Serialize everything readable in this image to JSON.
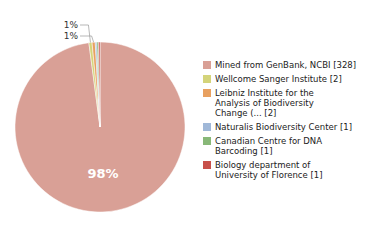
{
  "chart_data": {
    "type": "pie",
    "labels": [
      "Mined from GenBank, NCBI [328]",
      "Wellcome Sanger Institute [2]",
      "Leibniz Institute for the\nAnalysis of Biodiversity\nChange (... [2]",
      "Naturalis Biodiversity Center [1]",
      "Canadian Centre for DNA\nBarcoding [1]",
      "Biology department of\nUniversity of Florence [1]"
    ],
    "values": [
      97.91,
      0.597,
      0.597,
      0.299,
      0.299,
      0.299
    ],
    "value_labels": [
      "98%",
      "1%",
      "1%",
      null,
      null,
      null
    ],
    "colors": [
      "#d9a096",
      "#d4d47a",
      "#e8a060",
      "#a0b8d8",
      "#88b878",
      "#c8504a"
    ],
    "data_labels": true,
    "legend": "right"
  }
}
